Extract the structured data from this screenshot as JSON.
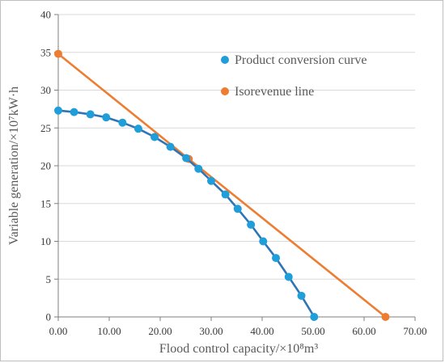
{
  "chart_data": {
    "type": "line",
    "title": "",
    "xlabel": "Flood control capacity/×10⁸m³",
    "ylabel": "Variable generation/×10⁷kW·h",
    "xlim": [
      0,
      70
    ],
    "ylim": [
      0,
      40
    ],
    "x_ticks": [
      "0.00",
      "10.00",
      "20.00",
      "30.00",
      "40.00",
      "50.00",
      "60.00",
      "70.00"
    ],
    "y_ticks": [
      "0",
      "5",
      "10",
      "15",
      "20",
      "25",
      "30",
      "35",
      "40"
    ],
    "grid": "horizontal",
    "legend_position": "top-right",
    "series": [
      {
        "name": "Product conversion curve",
        "color": "#2E75B6",
        "marker_color": "#1F9ED9",
        "points": [
          [
            0.0,
            27.3
          ],
          [
            3.1,
            27.1
          ],
          [
            6.3,
            26.8
          ],
          [
            9.4,
            26.4
          ],
          [
            12.6,
            25.7
          ],
          [
            15.7,
            24.9
          ],
          [
            18.9,
            23.8
          ],
          [
            22.0,
            22.5
          ],
          [
            25.1,
            21.0
          ],
          [
            27.5,
            19.6
          ],
          [
            30.0,
            18.0
          ],
          [
            32.8,
            16.2
          ],
          [
            35.2,
            14.3
          ],
          [
            37.8,
            12.2
          ],
          [
            40.2,
            10.0
          ],
          [
            42.7,
            7.8
          ],
          [
            45.2,
            5.3
          ],
          [
            47.7,
            2.8
          ],
          [
            50.2,
            0.0
          ]
        ]
      },
      {
        "name": "Isorevenue line",
        "color": "#ED7D31",
        "marker_color": "#ED7D31",
        "points": [
          [
            0.0,
            34.8
          ],
          [
            25.6,
            20.9
          ],
          [
            64.2,
            0.0
          ]
        ]
      }
    ]
  }
}
